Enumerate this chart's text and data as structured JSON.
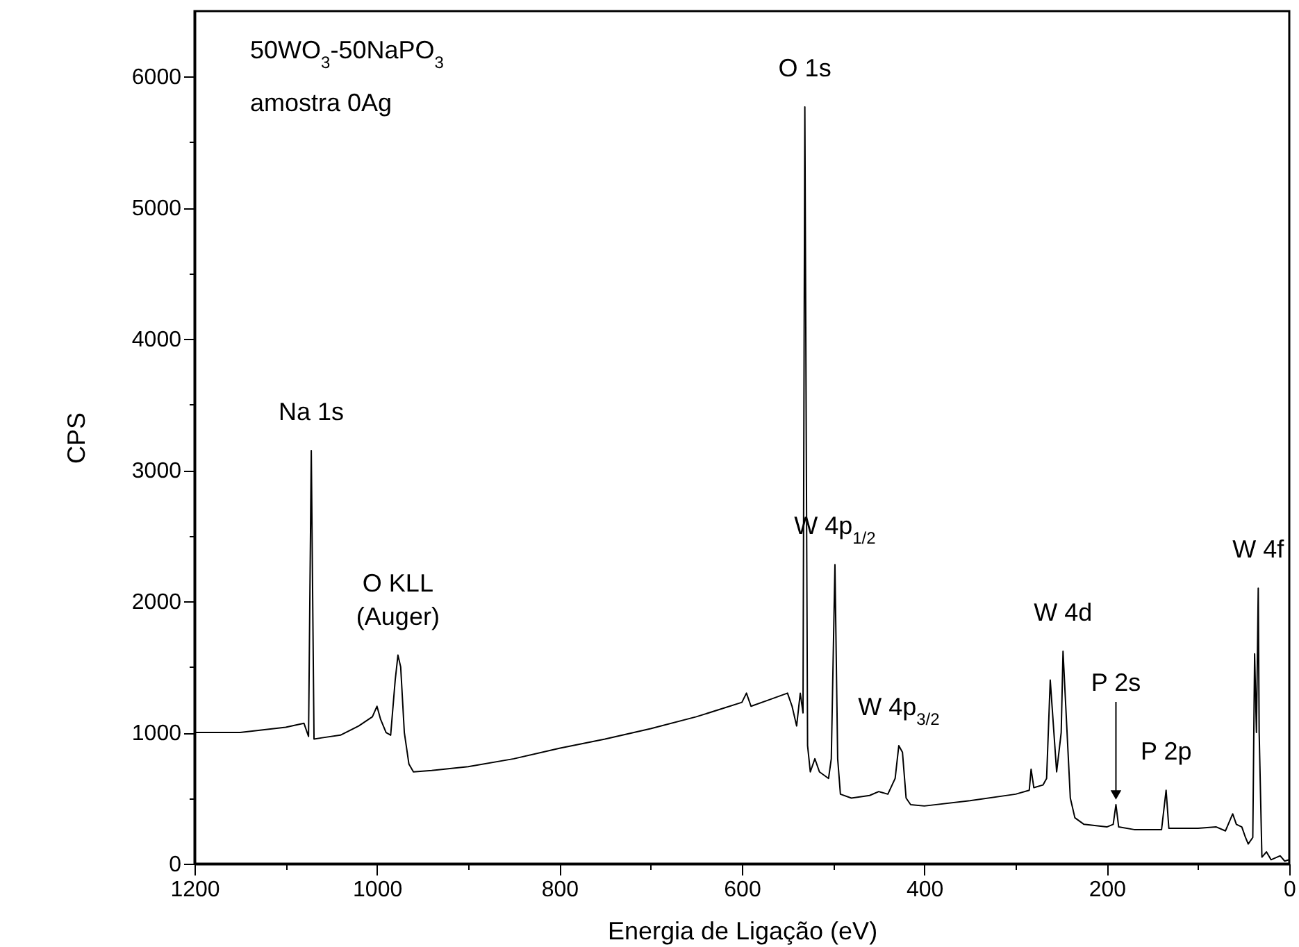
{
  "chart_data": {
    "type": "line",
    "xlabel": "Energia de Ligação (eV)",
    "ylabel": "CPS",
    "xlim": [
      1200,
      0
    ],
    "xticks": [
      0,
      {
        "value": 100,
        "label": null
      },
      200,
      {
        "value": 300,
        "label": null
      },
      400,
      {
        "value": 500,
        "label": null
      },
      600,
      {
        "value": 700,
        "label": null
      },
      800,
      {
        "value": 900,
        "label": null
      },
      1000,
      {
        "value": 1100,
        "label": null
      },
      1200
    ],
    "ylim": [
      0,
      6500
    ],
    "yticks": [
      0,
      {
        "value": 500,
        "label": null
      },
      1000,
      {
        "value": 1500,
        "label": null
      },
      2000,
      {
        "value": 2500,
        "label": null
      },
      3000,
      {
        "value": 3500,
        "label": null
      },
      4000,
      {
        "value": 4500,
        "label": null
      },
      5000,
      {
        "value": 5500,
        "label": null
      },
      6000
    ],
    "grid": false,
    "marker": "none",
    "line_style": "solid",
    "x": [
      1200,
      1150,
      1100,
      1080,
      1075,
      1072,
      1069,
      1060,
      1040,
      1020,
      1005,
      1000,
      996,
      990,
      985,
      980,
      977,
      974,
      970,
      965,
      960,
      940,
      900,
      850,
      800,
      750,
      700,
      650,
      600,
      595,
      590,
      570,
      550,
      545,
      540,
      536,
      533,
      531,
      528,
      525,
      520,
      515,
      505,
      502,
      498,
      495,
      492,
      480,
      460,
      450,
      440,
      432,
      428,
      424,
      420,
      415,
      400,
      350,
      300,
      285,
      283,
      280,
      270,
      266,
      262,
      258,
      255,
      250,
      248,
      245,
      240,
      235,
      225,
      200,
      193,
      190,
      187,
      170,
      140,
      135,
      132,
      100,
      80,
      70,
      62,
      58,
      52,
      48,
      45,
      40,
      38,
      36,
      34,
      33,
      30,
      25,
      20,
      10,
      5,
      0
    ],
    "series": [
      {
        "color": "#000000",
        "values": [
          1000,
          1000,
          1040,
          1070,
          970,
          3150,
          950,
          960,
          980,
          1050,
          1120,
          1200,
          1100,
          1000,
          980,
          1400,
          1590,
          1500,
          1000,
          760,
          700,
          710,
          740,
          800,
          880,
          950,
          1030,
          1120,
          1230,
          1300,
          1200,
          1250,
          1300,
          1200,
          1050,
          1300,
          1150,
          5770,
          900,
          700,
          800,
          700,
          650,
          800,
          2280,
          800,
          530,
          500,
          520,
          550,
          530,
          650,
          900,
          850,
          500,
          450,
          440,
          480,
          530,
          560,
          720,
          580,
          600,
          650,
          1400,
          1000,
          700,
          1000,
          1620,
          1200,
          500,
          350,
          300,
          280,
          300,
          450,
          280,
          260,
          260,
          560,
          270,
          270,
          280,
          250,
          380,
          300,
          280,
          200,
          150,
          200,
          1600,
          1000,
          2100,
          1000,
          50,
          90,
          30,
          60,
          20,
          30
        ]
      }
    ],
    "annotations": [
      "50WO$_{3}$-50NaPO$_{3}$",
      "amostra 0Ag",
      {
        "text": "Na 1s",
        "x": 1072,
        "y": 3150
      },
      {
        "text": "O KLL\n(Auger)",
        "x": 977,
        "y": 1590
      },
      {
        "text": "O 1s",
        "x": 531,
        "y": 5770
      },
      {
        "text": "W 4p$_{1/2}$",
        "x": 498,
        "y": 2280
      },
      {
        "text": "W 4p$_{3/2}$",
        "x": 428,
        "y": 900
      },
      {
        "text": "W 4d",
        "x": 248,
        "y": 1620
      },
      {
        "text": "P 2s",
        "x": 190,
        "y": 450
      },
      {
        "text": "P 2p",
        "x": 135,
        "y": 560
      },
      {
        "text": "W 4f",
        "x": 34,
        "y": 2100
      }
    ]
  }
}
